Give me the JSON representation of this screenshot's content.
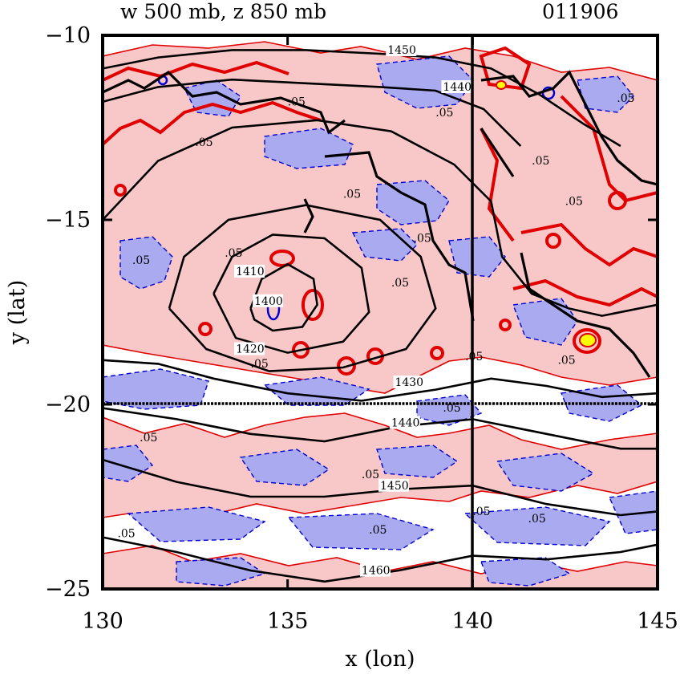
{
  "chart_data": {
    "type": "contour",
    "title": "w 500 mb, z 850 mb",
    "date_label": "011906",
    "xlabel": "x (lon)",
    "ylabel": "y (lat)",
    "xlim": [
      130,
      145
    ],
    "ylim": [
      -25,
      -10
    ],
    "xticks": [
      130,
      135,
      140,
      145
    ],
    "yticks": [
      -10,
      -15,
      -20,
      -25
    ],
    "xtick_labels": [
      "130",
      "135",
      "140",
      "145"
    ],
    "ytick_labels": [
      "−10",
      "−15",
      "−20",
      "−25"
    ],
    "reference_lines": {
      "x": 140,
      "y": -20
    },
    "colors": {
      "ascent_fill": "#f8c8c8",
      "descent_fill": "#aaaaf0",
      "ascent_line": "#e00000",
      "descent_line": "#0000d0",
      "height_line": "#000000",
      "highlight": "#ffff00"
    },
    "height_contours": [
      {
        "level": "1400",
        "label": "1400",
        "label_pos": [
          134.1,
          -17.3
        ],
        "points": [
          [
            134.0,
            -17.4
          ],
          [
            134.3,
            -16.6
          ],
          [
            135.0,
            -16.2
          ],
          [
            135.7,
            -16.6
          ],
          [
            135.8,
            -17.3
          ],
          [
            135.4,
            -17.9
          ],
          [
            134.6,
            -18.0
          ],
          [
            134.1,
            -17.7
          ],
          [
            134.0,
            -17.4
          ]
        ]
      },
      {
        "level": "1410",
        "label": "1410",
        "label_pos": [
          133.6,
          -16.5
        ],
        "points": [
          [
            133.0,
            -17.0
          ],
          [
            133.5,
            -16.0
          ],
          [
            134.6,
            -15.4
          ],
          [
            136.0,
            -15.5
          ],
          [
            137.0,
            -16.3
          ],
          [
            137.2,
            -17.5
          ],
          [
            136.5,
            -18.3
          ],
          [
            135.0,
            -18.6
          ],
          [
            133.6,
            -18.2
          ],
          [
            133.0,
            -17.0
          ]
        ]
      },
      {
        "level": "1420",
        "label": "1420",
        "label_pos": [
          133.6,
          -18.6
        ],
        "points": [
          [
            131.8,
            -17.4
          ],
          [
            132.2,
            -16.0
          ],
          [
            133.4,
            -15.0
          ],
          [
            135.5,
            -14.6
          ],
          [
            137.5,
            -15.0
          ],
          [
            138.6,
            -16.0
          ],
          [
            139.0,
            -17.4
          ],
          [
            138.2,
            -18.5
          ],
          [
            136.5,
            -19.0
          ],
          [
            134.5,
            -19.1
          ],
          [
            132.8,
            -18.5
          ],
          [
            131.8,
            -17.4
          ]
        ]
      },
      {
        "level": "1430",
        "label": "1430",
        "label_pos": [
          137.9,
          -19.5
        ],
        "points": [
          [
            130.0,
            -15.0
          ],
          [
            131.5,
            -13.4
          ],
          [
            133.5,
            -12.5
          ],
          [
            135.8,
            -12.3
          ],
          [
            137.8,
            -12.6
          ],
          [
            139.5,
            -13.5
          ],
          [
            140.5,
            -14.5
          ],
          [
            140.8,
            -16.0
          ],
          [
            141.6,
            -17.0
          ],
          [
            142.6,
            -17.4
          ],
          [
            143.5,
            -17.6
          ],
          [
            145.0,
            -17.3
          ]
        ]
      },
      {
        "level": "1430",
        "label": "",
        "label_pos": null,
        "points": [
          [
            130.0,
            -18.8
          ],
          [
            131.5,
            -18.9
          ],
          [
            133.0,
            -19.3
          ],
          [
            135.0,
            -19.7
          ],
          [
            137.0,
            -19.9
          ],
          [
            139.0,
            -19.6
          ],
          [
            140.5,
            -19.3
          ],
          [
            142.0,
            -19.5
          ],
          [
            143.5,
            -19.8
          ],
          [
            145.0,
            -19.7
          ]
        ]
      },
      {
        "level": "1440",
        "label": "1440",
        "label_pos": [
          139.2,
          -11.5
        ],
        "points": [
          [
            130.0,
            -11.8
          ],
          [
            131.5,
            -11.4
          ],
          [
            133.5,
            -11.2
          ],
          [
            135.5,
            -11.3
          ],
          [
            137.5,
            -11.4
          ],
          [
            139.0,
            -11.5
          ],
          [
            140.3,
            -12.0
          ],
          [
            141.3,
            -13.0
          ]
        ]
      },
      {
        "level": "1440",
        "label": "1440",
        "label_pos": [
          137.8,
          -20.6
        ],
        "points": [
          [
            130.0,
            -20.1
          ],
          [
            132.0,
            -20.4
          ],
          [
            134.0,
            -20.8
          ],
          [
            136.0,
            -21.0
          ],
          [
            138.0,
            -20.6
          ],
          [
            140.0,
            -20.4
          ],
          [
            142.0,
            -20.8
          ],
          [
            144.0,
            -21.2
          ],
          [
            145.0,
            -21.2
          ]
        ]
      },
      {
        "level": "1450",
        "label": "1450",
        "label_pos": [
          137.7,
          -10.5
        ],
        "points": [
          [
            130.0,
            -10.9
          ],
          [
            131.5,
            -10.6
          ],
          [
            133.5,
            -10.4
          ],
          [
            135.5,
            -10.4
          ],
          [
            137.5,
            -10.5
          ],
          [
            139.0,
            -10.6
          ],
          [
            140.5,
            -10.9
          ],
          [
            141.8,
            -11.6
          ],
          [
            143.0,
            -12.4
          ],
          [
            144.0,
            -13.0
          ]
        ]
      },
      {
        "level": "1450",
        "label": "1450",
        "label_pos": [
          137.5,
          -22.3
        ],
        "points": [
          [
            130.0,
            -21.5
          ],
          [
            132.0,
            -22.1
          ],
          [
            134.0,
            -22.5
          ],
          [
            136.0,
            -22.5
          ],
          [
            138.0,
            -22.3
          ],
          [
            140.0,
            -22.2
          ],
          [
            142.0,
            -22.7
          ],
          [
            144.0,
            -23.0
          ],
          [
            145.0,
            -22.9
          ]
        ]
      },
      {
        "level": "1460",
        "label": "1460",
        "label_pos": [
          137.0,
          -24.6
        ],
        "points": [
          [
            130.0,
            -23.6
          ],
          [
            132.0,
            -24.0
          ],
          [
            134.0,
            -24.5
          ],
          [
            136.0,
            -24.8
          ],
          [
            138.0,
            -24.5
          ],
          [
            140.0,
            -24.1
          ],
          [
            142.0,
            -24.2
          ],
          [
            144.0,
            -24.0
          ],
          [
            145.0,
            -23.8
          ]
        ]
      }
    ],
    "w_labels": [
      {
        "text": ".05",
        "pos": [
          130.8,
          -16.2
        ]
      },
      {
        "text": ".05",
        "pos": [
          133.3,
          -16.0
        ]
      },
      {
        "text": ".05",
        "pos": [
          134.0,
          -19.0
        ]
      },
      {
        "text": ".05",
        "pos": [
          131.0,
          -21.0
        ]
      },
      {
        "text": ".05",
        "pos": [
          132.5,
          -13.0
        ]
      },
      {
        "text": ".05",
        "pos": [
          135.0,
          -11.9
        ]
      },
      {
        "text": ".05",
        "pos": [
          136.5,
          -14.4
        ]
      },
      {
        "text": ".05",
        "pos": [
          138.4,
          -15.6
        ]
      },
      {
        "text": ".05",
        "pos": [
          137.8,
          -16.8
        ]
      },
      {
        "text": ".05",
        "pos": [
          139.0,
          -12.2
        ]
      },
      {
        "text": ".05",
        "pos": [
          139.2,
          -20.2
        ]
      },
      {
        "text": ".05",
        "pos": [
          139.8,
          -18.8
        ]
      },
      {
        "text": ".05",
        "pos": [
          141.6,
          -13.5
        ]
      },
      {
        "text": ".05",
        "pos": [
          142.5,
          -14.6
        ]
      },
      {
        "text": ".05",
        "pos": [
          143.9,
          -11.8
        ]
      },
      {
        "text": ".05",
        "pos": [
          142.3,
          -18.9
        ]
      },
      {
        "text": ".05",
        "pos": [
          140.0,
          -23.0
        ]
      },
      {
        "text": ".05",
        "pos": [
          141.5,
          -23.2
        ]
      },
      {
        "text": ".05",
        "pos": [
          137.0,
          -22.0
        ]
      },
      {
        "text": ".05",
        "pos": [
          137.2,
          -23.5
        ]
      },
      {
        "text": ".05",
        "pos": [
          130.4,
          -23.6
        ]
      }
    ]
  }
}
